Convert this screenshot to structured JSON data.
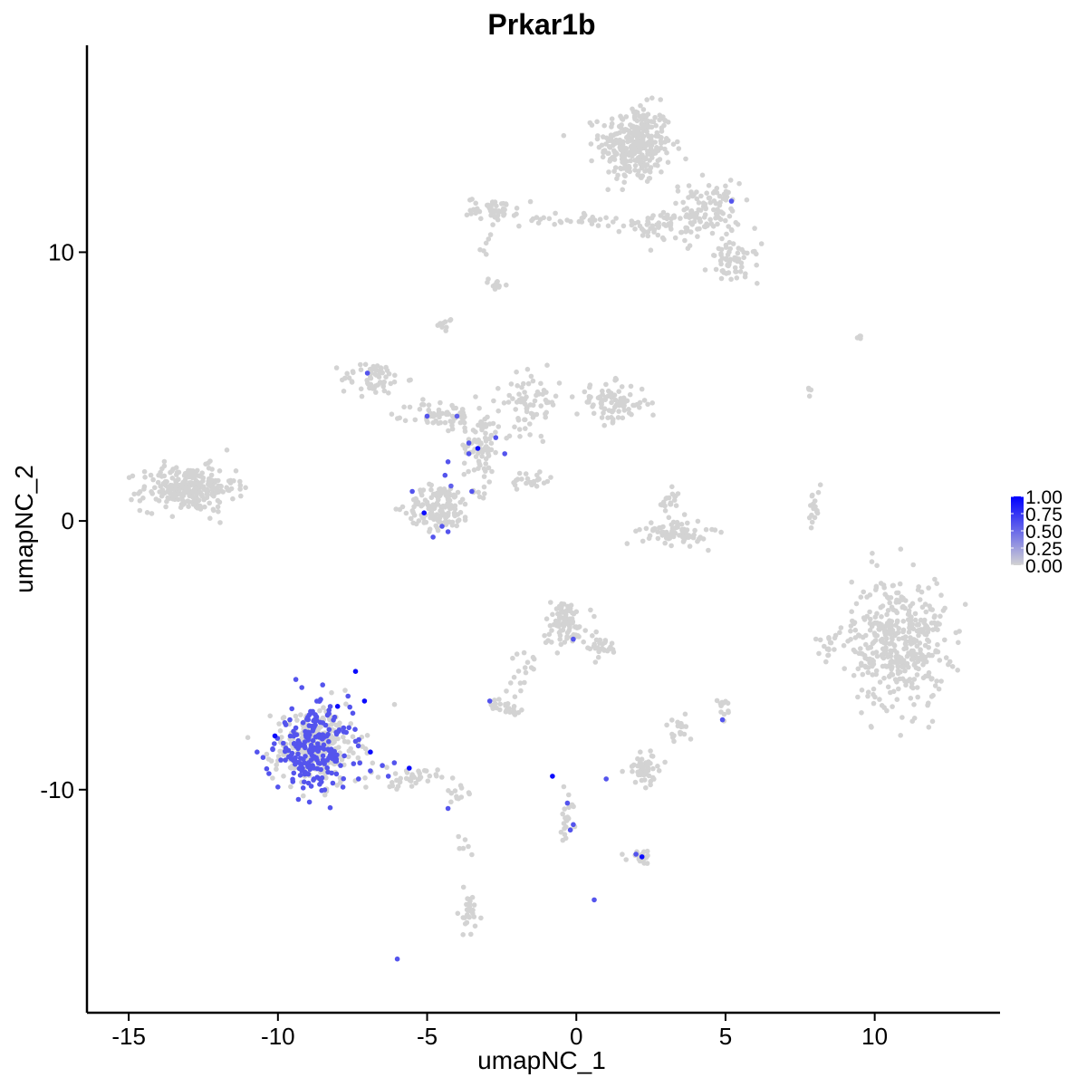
{
  "chart_data": {
    "type": "scatter",
    "title": "Prkar1b",
    "xlabel": "umapNC_1",
    "ylabel": "umapNC_2",
    "xlim": [
      -16.4,
      14.2
    ],
    "ylim": [
      -18.3,
      17.7
    ],
    "x_ticks": [
      -15,
      -10,
      -5,
      0,
      5,
      10
    ],
    "x_tick_labels": [
      "-15",
      "-10",
      "-5",
      "0",
      "5",
      "10"
    ],
    "y_ticks": [
      -10,
      0,
      10
    ],
    "y_tick_labels": [
      "-10",
      "0",
      "10"
    ],
    "grid": false,
    "legend": {
      "placement": "right",
      "type": "colorbar",
      "low_color": "#d3d3d3",
      "high_color": "#0000ff",
      "ticks": [
        0.0,
        0.25,
        0.5,
        0.75,
        1.0
      ],
      "tick_labels": [
        "0.00",
        "0.25",
        "0.50",
        "0.75",
        "1.00"
      ]
    },
    "colors": {
      "low": "#d3d3d3",
      "high": "#0000ff",
      "axis": "#000000"
    },
    "clusters": [
      {
        "center": [
          2.0,
          14.0
        ],
        "spread": [
          1.0,
          1.2
        ],
        "n": 320
      },
      {
        "center": [
          4.3,
          11.5
        ],
        "spread": [
          1.0,
          0.9
        ],
        "n": 120
      },
      {
        "center": [
          5.3,
          9.6
        ],
        "spread": [
          0.7,
          0.6
        ],
        "n": 60
      },
      {
        "center": [
          -2.8,
          11.6
        ],
        "spread": [
          0.7,
          0.35
        ],
        "n": 50
      },
      {
        "center": [
          -0.3,
          11.2
        ],
        "spread": [
          1.3,
          0.2
        ],
        "n": 30
      },
      {
        "center": [
          2.8,
          11.0
        ],
        "spread": [
          1.0,
          0.4
        ],
        "n": 50
      },
      {
        "center": [
          -3.0,
          10.3
        ],
        "spread": [
          0.15,
          0.4
        ],
        "n": 6
      },
      {
        "center": [
          -2.7,
          8.8
        ],
        "spread": [
          0.2,
          0.2
        ],
        "n": 12
      },
      {
        "center": [
          -13.0,
          1.2
        ],
        "spread": [
          1.3,
          0.7
        ],
        "n": 260
      },
      {
        "center": [
          -6.8,
          5.3
        ],
        "spread": [
          0.9,
          0.5
        ],
        "n": 60
      },
      {
        "center": [
          -4.5,
          3.9
        ],
        "spread": [
          0.9,
          0.5
        ],
        "n": 60
      },
      {
        "center": [
          -4.6,
          0.5
        ],
        "spread": [
          0.9,
          0.7
        ],
        "n": 140
      },
      {
        "center": [
          -3.2,
          2.8
        ],
        "spread": [
          0.5,
          1.4
        ],
        "n": 90
      },
      {
        "center": [
          -1.5,
          4.4
        ],
        "spread": [
          0.8,
          0.9
        ],
        "n": 70
      },
      {
        "center": [
          1.2,
          4.4
        ],
        "spread": [
          1.0,
          0.6
        ],
        "n": 90
      },
      {
        "center": [
          -1.5,
          1.5
        ],
        "spread": [
          0.6,
          0.3
        ],
        "n": 25
      },
      {
        "center": [
          -4.4,
          7.3
        ],
        "spread": [
          0.2,
          0.25
        ],
        "n": 10
      },
      {
        "center": [
          3.3,
          -0.4
        ],
        "spread": [
          0.9,
          0.4
        ],
        "n": 80
      },
      {
        "center": [
          3.1,
          0.7
        ],
        "spread": [
          0.3,
          0.4
        ],
        "n": 20
      },
      {
        "center": [
          8.0,
          0.3
        ],
        "spread": [
          0.2,
          0.7
        ],
        "n": 18
      },
      {
        "center": [
          10.8,
          -4.5
        ],
        "spread": [
          1.3,
          2.0
        ],
        "n": 420
      },
      {
        "center": [
          8.6,
          -4.5
        ],
        "spread": [
          0.5,
          0.5
        ],
        "n": 20
      },
      {
        "center": [
          -0.4,
          -3.8
        ],
        "spread": [
          0.6,
          0.7
        ],
        "n": 90
      },
      {
        "center": [
          0.8,
          -4.7
        ],
        "spread": [
          0.5,
          0.4
        ],
        "n": 30
      },
      {
        "center": [
          -1.7,
          -5.6
        ],
        "spread": [
          0.4,
          0.7
        ],
        "n": 18
      },
      {
        "center": [
          -2.4,
          -6.9
        ],
        "spread": [
          0.5,
          0.2
        ],
        "n": 25
      },
      {
        "center": [
          -8.7,
          -8.4
        ],
        "spread": [
          1.2,
          1.2
        ],
        "n": 280
      },
      {
        "center": [
          -5.6,
          -9.6
        ],
        "spread": [
          0.8,
          0.3
        ],
        "n": 40
      },
      {
        "center": [
          -4.0,
          -10.2
        ],
        "spread": [
          0.4,
          0.3
        ],
        "n": 12
      },
      {
        "center": [
          2.3,
          -9.2
        ],
        "spread": [
          0.5,
          0.5
        ],
        "n": 55
      },
      {
        "center": [
          3.4,
          -7.8
        ],
        "spread": [
          0.4,
          0.5
        ],
        "n": 18
      },
      {
        "center": [
          4.9,
          -7.0
        ],
        "spread": [
          0.15,
          0.3
        ],
        "n": 12
      },
      {
        "center": [
          -0.3,
          -10.9
        ],
        "spread": [
          0.25,
          0.8
        ],
        "n": 20
      },
      {
        "center": [
          2.2,
          -12.5
        ],
        "spread": [
          0.4,
          0.2
        ],
        "n": 20
      },
      {
        "center": [
          -3.6,
          -14.5
        ],
        "spread": [
          0.3,
          0.8
        ],
        "n": 30
      },
      {
        "center": [
          7.8,
          4.8
        ],
        "spread": [
          0.1,
          0.2
        ],
        "n": 4
      },
      {
        "center": [
          9.5,
          6.8
        ],
        "spread": [
          0.3,
          0.15
        ],
        "n": 5
      },
      {
        "center": [
          -3.8,
          -12.2
        ],
        "spread": [
          0.3,
          0.6
        ],
        "n": 6
      }
    ],
    "expressing_points": [
      [
        -7.0,
        5.5,
        0.6
      ],
      [
        -5.0,
        3.9,
        0.6
      ],
      [
        -4.0,
        3.9,
        0.55
      ],
      [
        -3.6,
        2.9,
        0.6
      ],
      [
        -3.3,
        2.7,
        0.95
      ],
      [
        -3.6,
        2.5,
        0.6
      ],
      [
        -4.3,
        2.2,
        0.6
      ],
      [
        -2.4,
        2.5,
        0.6
      ],
      [
        -2.7,
        3.1,
        0.6
      ],
      [
        -4.4,
        1.7,
        0.6
      ],
      [
        -4.2,
        1.3,
        0.55
      ],
      [
        -3.5,
        1.1,
        0.6
      ],
      [
        -5.5,
        1.1,
        0.6
      ],
      [
        -5.1,
        0.3,
        0.95
      ],
      [
        -4.5,
        -0.2,
        0.6
      ],
      [
        -4.8,
        -0.6,
        0.6
      ],
      [
        -4.3,
        -0.4,
        0.6
      ],
      [
        5.2,
        11.9,
        0.6
      ],
      [
        -0.1,
        -4.4,
        0.6
      ],
      [
        -2.9,
        -6.7,
        0.6
      ],
      [
        -0.8,
        -9.5,
        0.95
      ],
      [
        -0.3,
        -10.5,
        0.6
      ],
      [
        -0.1,
        -11.3,
        0.6
      ],
      [
        -0.2,
        -11.5,
        0.6
      ],
      [
        1.0,
        -9.6,
        0.6
      ],
      [
        2.0,
        -12.4,
        0.6
      ],
      [
        2.2,
        -12.5,
        0.95
      ],
      [
        0.6,
        -14.1,
        0.6
      ],
      [
        4.9,
        -7.4,
        0.6
      ],
      [
        -6.0,
        -16.3,
        0.6
      ],
      [
        -4.3,
        -10.7,
        0.6
      ],
      [
        -5.6,
        -9.2,
        0.95
      ],
      [
        -6.9,
        -8.6,
        0.95
      ],
      [
        -7.1,
        -6.7,
        0.95
      ],
      [
        -7.4,
        -5.6,
        0.95
      ],
      [
        -8.0,
        -6.9,
        0.95
      ],
      [
        -10.1,
        -8.0,
        0.95
      ],
      [
        -9.4,
        -5.9,
        0.6
      ],
      [
        -9.2,
        -6.2,
        0.6
      ],
      [
        -9.6,
        -7.4,
        0.6
      ],
      [
        -9.9,
        -8.9,
        0.6
      ],
      [
        -10.5,
        -8.8,
        0.6
      ],
      [
        -10.3,
        -9.4,
        0.6
      ],
      [
        -9.2,
        -9.3,
        0.6
      ],
      [
        -8.6,
        -9.8,
        0.6
      ],
      [
        -7.9,
        -9.1,
        0.6
      ],
      [
        -7.4,
        -8.2,
        0.6
      ],
      [
        -8.4,
        -7.6,
        0.6
      ],
      [
        -8.8,
        -8.5,
        0.6
      ],
      [
        -9.0,
        -7.3,
        0.6
      ],
      [
        -8.2,
        -8.8,
        0.6
      ],
      [
        -9.5,
        -9.7,
        0.6
      ],
      [
        -7.8,
        -7.7,
        0.6
      ],
      [
        -8.6,
        -6.7,
        0.6
      ],
      [
        -10.0,
        -9.9,
        0.6
      ],
      [
        -6.9,
        -9.3,
        0.6
      ],
      [
        -7.3,
        -9.6,
        0.6
      ],
      [
        -8.9,
        -9.2,
        0.6
      ],
      [
        -9.3,
        -8.4,
        0.6
      ],
      [
        -8.1,
        -7.3,
        0.6
      ],
      [
        -6.5,
        -9.1,
        0.6
      ],
      [
        -6.1,
        -9.0,
        0.6
      ],
      [
        -6.3,
        -9.5,
        0.6
      ],
      [
        -10.7,
        -8.6,
        0.6
      ],
      [
        -8.5,
        -6.1,
        0.6
      ]
    ],
    "dense_expressing_region": {
      "center": [
        -8.8,
        -8.5
      ],
      "spread": [
        0.9,
        1.0
      ],
      "n": 200,
      "value": 0.6
    }
  }
}
